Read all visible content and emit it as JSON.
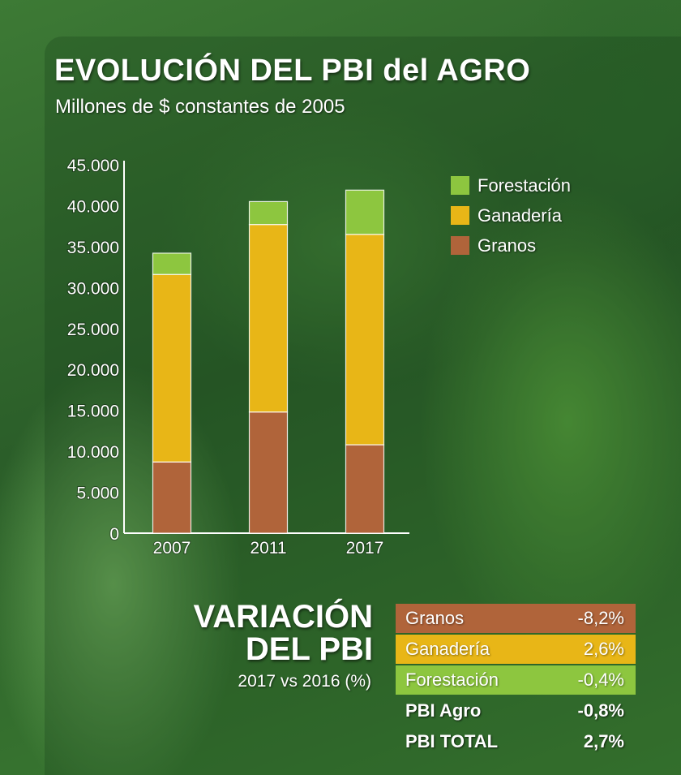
{
  "header": {
    "title": "EVOLUCIÓN DEL PBI del AGRO",
    "subtitle": "Millones de $ constantes de 2005"
  },
  "colors": {
    "Forestación": "#8dc63f",
    "Ganadería": "#e8b617",
    "Granos": "#b0643a"
  },
  "chart_data": {
    "type": "bar",
    "stacked": true,
    "title": "EVOLUCIÓN DEL PBI del AGRO",
    "subtitle": "Millones de $ constantes de 2005",
    "categories": [
      "2007",
      "2011",
      "2017"
    ],
    "series": [
      {
        "name": "Granos",
        "values": [
          8700,
          14800,
          10800
        ]
      },
      {
        "name": "Ganadería",
        "values": [
          22900,
          22900,
          25700
        ]
      },
      {
        "name": "Forestación",
        "values": [
          2600,
          2800,
          5400
        ]
      }
    ],
    "ylim": [
      0,
      45000
    ],
    "yticks": [
      "0",
      "5.000",
      "10.000",
      "15.000",
      "20.000",
      "25.000",
      "30.000",
      "35.000",
      "40.000",
      "45.000"
    ],
    "grid": false,
    "legend": "top-right"
  },
  "legend": {
    "items": [
      {
        "label": "Forestación",
        "color": "#8dc63f"
      },
      {
        "label": "Ganadería",
        "color": "#e8b617"
      },
      {
        "label": "Granos",
        "color": "#b0643a"
      }
    ]
  },
  "variation": {
    "title_line1": "VARIACIÓN",
    "title_line2": "DEL PBI",
    "subtitle": "2017 vs 2016 (%)",
    "rows": [
      {
        "label": "Granos",
        "value": "-8,2%",
        "color": "#b0643a"
      },
      {
        "label": "Ganadería",
        "value": "2,6%",
        "color": "#e8b617"
      },
      {
        "label": "Forestación",
        "value": "-0,4%",
        "color": "#8dc63f"
      },
      {
        "label": "PBI Agro",
        "value": "-0,8%"
      },
      {
        "label": "PBI TOTAL",
        "value": "2,7%"
      }
    ]
  }
}
